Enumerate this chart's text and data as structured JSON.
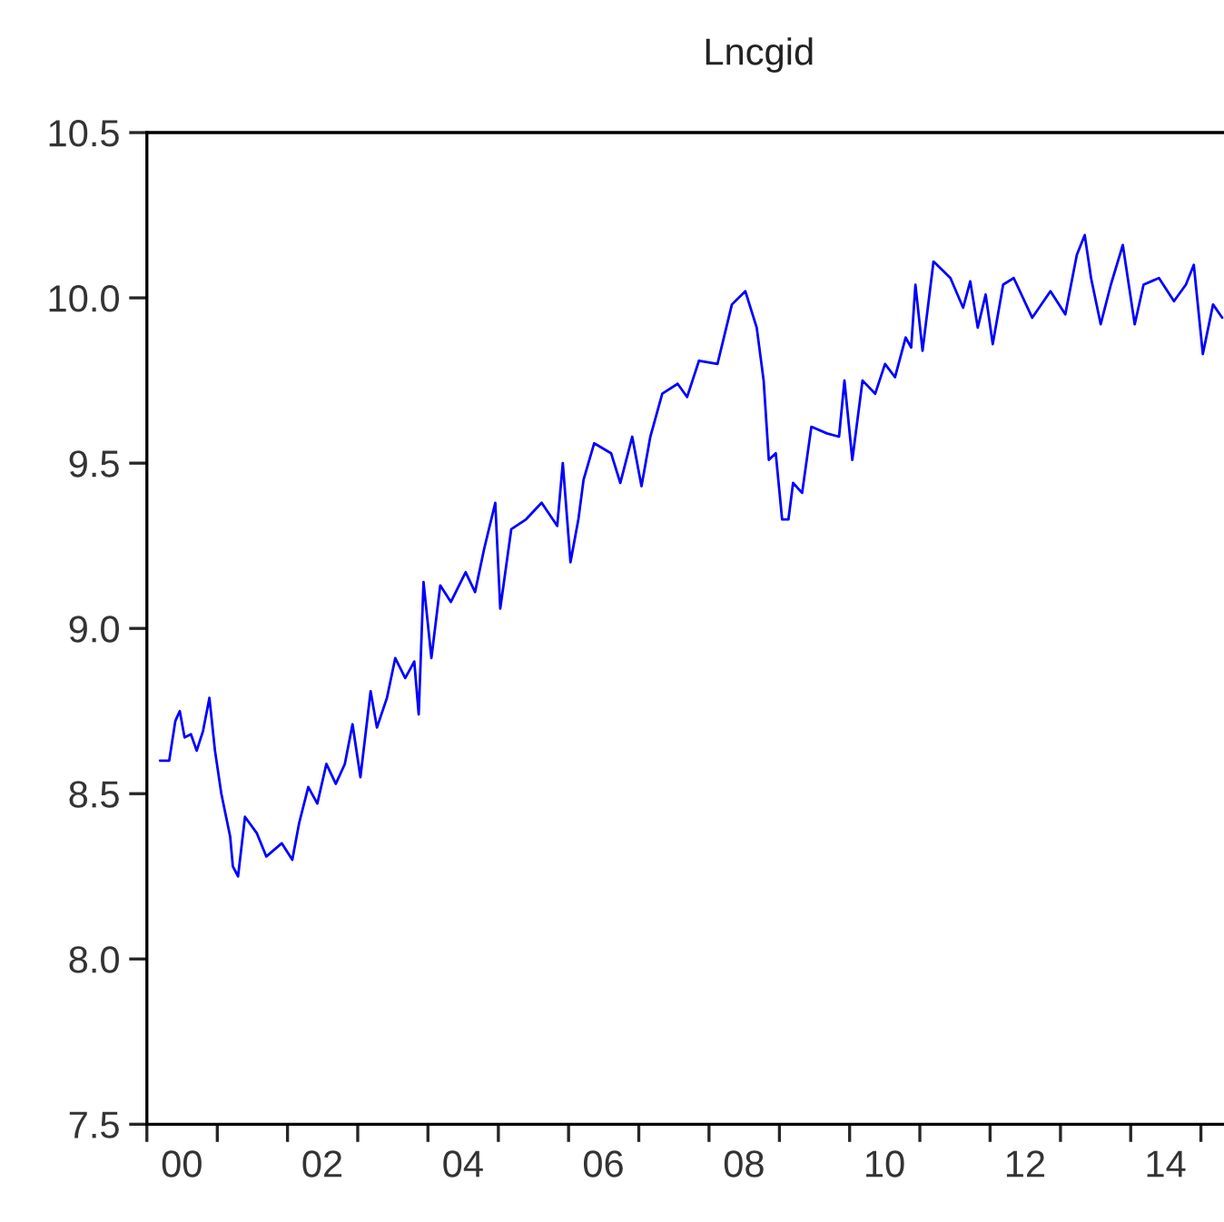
{
  "chart_data": {
    "type": "line",
    "title": "Lncgid",
    "series": [
      {
        "color": "#0000ff",
        "x": [
          "2000-03-09",
          "2000-04-26",
          "2000-05-28",
          "2000-06-20",
          "2000-07-15",
          "2000-08-17",
          "2000-09-16",
          "2000-10-19",
          "2000-11-21",
          "2000-12-20",
          "2001-01-22",
          "2001-03-09",
          "2001-03-23",
          "2001-04-19",
          "2001-05-25",
          "2001-07-26",
          "2001-09-13",
          "2001-12-02",
          "2002-01-26",
          "2002-03-02",
          "2002-04-19",
          "2002-06-05",
          "2002-07-22",
          "2002-09-09",
          "2002-10-26",
          "2002-12-05",
          "2003-01-15",
          "2003-03-09",
          "2003-04-11",
          "2003-06-02",
          "2003-07-15",
          "2003-09-05",
          "2003-10-22",
          "2003-11-14",
          "2003-12-09",
          "2004-01-19",
          "2004-03-05",
          "2004-04-29",
          "2004-07-15",
          "2004-09-02",
          "2004-10-19",
          "2004-12-16",
          "2005-01-11",
          "2005-03-09",
          "2005-05-25",
          "2005-08-14",
          "2005-11-03",
          "2005-12-02",
          "2006-01-11",
          "2006-02-21",
          "2006-03-20",
          "2006-05-14",
          "2006-08-10",
          "2006-09-27",
          "2006-11-28",
          "2007-01-15",
          "2007-03-02",
          "2007-05-03",
          "2007-07-22",
          "2007-09-09",
          "2007-11-10",
          "2008-02-14",
          "2008-04-29",
          "2008-07-08",
          "2008-09-05",
          "2008-10-11",
          "2008-11-07",
          "2008-12-13",
          "2009-01-15",
          "2009-02-17",
          "2009-03-13",
          "2009-04-29",
          "2009-06-16",
          "2009-09-05",
          "2009-11-07",
          "2009-12-05",
          "2010-01-15",
          "2010-03-09",
          "2010-05-14",
          "2010-07-04",
          "2010-08-25",
          "2010-10-19",
          "2010-11-17",
          "2010-12-09",
          "2011-01-15",
          "2011-03-13",
          "2011-06-09",
          "2011-08-14",
          "2011-09-20",
          "2011-10-29",
          "2011-12-09",
          "2012-01-15",
          "2012-03-09",
          "2012-05-03",
          "2012-08-07",
          "2012-11-10",
          "2013-01-26",
          "2013-03-27",
          "2013-05-07",
          "2013-06-09",
          "2013-07-29",
          "2013-09-20",
          "2013-11-21",
          "2014-01-22",
          "2014-03-09",
          "2014-05-28",
          "2014-08-14",
          "2014-10-15",
          "2014-11-25",
          "2015-01-11",
          "2015-03-05",
          "2015-04-22"
        ],
        "values": [
          8.6,
          8.6,
          8.72,
          8.75,
          8.67,
          8.68,
          8.63,
          8.69,
          8.79,
          8.63,
          8.5,
          8.37,
          8.28,
          8.25,
          8.43,
          8.38,
          8.31,
          8.35,
          8.3,
          8.41,
          8.52,
          8.47,
          8.59,
          8.53,
          8.59,
          8.71,
          8.55,
          8.81,
          8.7,
          8.79,
          8.91,
          8.85,
          8.9,
          8.74,
          9.14,
          8.91,
          9.13,
          9.08,
          9.17,
          9.11,
          9.24,
          9.38,
          9.06,
          9.3,
          9.33,
          9.38,
          9.31,
          9.5,
          9.2,
          9.33,
          9.45,
          9.56,
          9.53,
          9.44,
          9.58,
          9.43,
          9.58,
          9.71,
          9.74,
          9.7,
          9.81,
          9.8,
          9.98,
          10.02,
          9.91,
          9.75,
          9.51,
          9.53,
          9.33,
          9.33,
          9.44,
          9.41,
          9.61,
          9.59,
          9.58,
          9.75,
          9.51,
          9.75,
          9.71,
          9.8,
          9.76,
          9.88,
          9.85,
          10.04,
          9.84,
          10.11,
          10.06,
          9.97,
          10.05,
          9.91,
          10.01,
          9.86,
          10.04,
          10.06,
          9.94,
          10.02,
          9.95,
          10.13,
          10.19,
          10.06,
          9.92,
          10.04,
          10.16,
          9.92,
          10.04,
          10.06,
          9.99,
          10.04,
          10.1,
          9.83,
          9.98,
          9.94
        ]
      }
    ],
    "ylim": [
      7.5,
      10.5
    ],
    "yticks": [
      {
        "value": 7.5,
        "label": "7.5"
      },
      {
        "value": 8.0,
        "label": "8.0"
      },
      {
        "value": 8.5,
        "label": "8.5"
      },
      {
        "value": 9.0,
        "label": "9.0"
      },
      {
        "value": 9.5,
        "label": "9.5"
      },
      {
        "value": 10.0,
        "label": "10.0"
      },
      {
        "value": 10.5,
        "label": "10.5"
      }
    ],
    "xlim": [
      "2000-01-01",
      "2015-05-01"
    ],
    "xticks": [
      {
        "value": "2000-07-01",
        "label": "00"
      },
      {
        "value": "2002-07-01",
        "label": "02"
      },
      {
        "value": "2004-07-01",
        "label": "04"
      },
      {
        "value": "2006-07-01",
        "label": "06"
      },
      {
        "value": "2008-07-01",
        "label": "08"
      },
      {
        "value": "2010-07-01",
        "label": "10"
      },
      {
        "value": "2012-07-01",
        "label": "12"
      },
      {
        "value": "2014-07-01",
        "label": "14"
      },
      {
        "value": "2000",
        "label": null
      },
      {
        "value": "2001",
        "label": null
      },
      {
        "value": "2002",
        "label": null
      },
      {
        "value": "2003",
        "label": null
      },
      {
        "value": "2004",
        "label": null
      },
      {
        "value": "2005",
        "label": null
      },
      {
        "value": "2006",
        "label": null
      },
      {
        "value": "2007",
        "label": null
      },
      {
        "value": "2008",
        "label": null
      },
      {
        "value": "2009",
        "label": null
      },
      {
        "value": "2010",
        "label": null
      },
      {
        "value": "2011",
        "label": null
      },
      {
        "value": "2012",
        "label": null
      },
      {
        "value": "2013",
        "label": null
      },
      {
        "value": "2014",
        "label": null
      },
      {
        "value": "2015",
        "label": null
      }
    ],
    "grid": false,
    "legend": false,
    "marker": "none",
    "line_style": "solid"
  }
}
